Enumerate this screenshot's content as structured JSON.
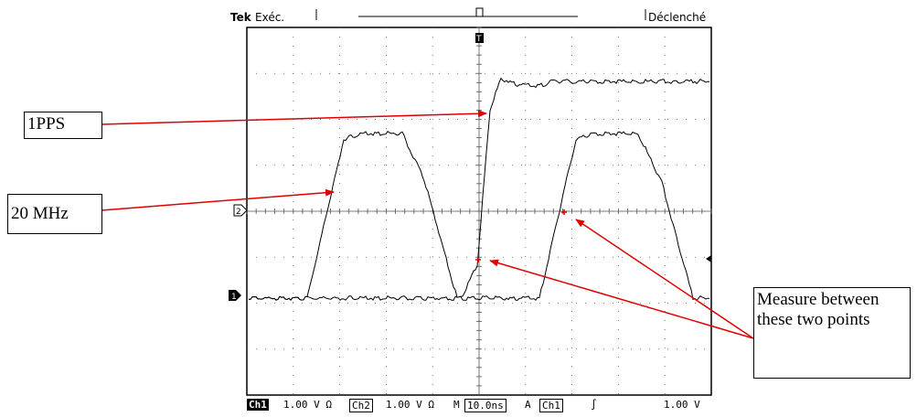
{
  "header": {
    "brand": "Tek",
    "run_state": "Exéc.",
    "trigger_state": "Déclenché"
  },
  "markers": {
    "ch1": "1",
    "ch2": "2",
    "trigger": "T"
  },
  "callouts": {
    "pps": "1PPS",
    "mhz": "20 MHz",
    "measure": "Measure between these two points"
  },
  "status_bar": {
    "ch1_label": "Ch1",
    "ch1_scale": "1.00 V Ω",
    "ch2_label": "Ch2",
    "ch2_scale": "1.00 V Ω",
    "timebase_label": "M",
    "timebase": "10.0ns",
    "trigger_mode": "A",
    "trigger_source": "Ch1",
    "trigger_slope": "∫",
    "trigger_level": "1.00 V"
  },
  "colors": {
    "arrow": "#e00000",
    "trace": "#000000",
    "grid": "#555555",
    "marker": "#e00000"
  }
}
